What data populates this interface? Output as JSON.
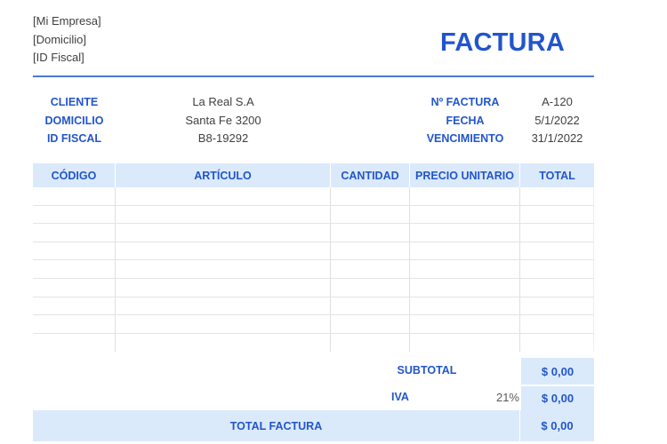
{
  "company": {
    "name": "[Mi Empresa]",
    "address": "[Domicilio]",
    "tax_id": "[ID Fiscal]"
  },
  "title": "FACTURA",
  "client": {
    "labels": {
      "client": "CLIENTE",
      "address": "DOMICILIO",
      "tax_id": "ID FISCAL"
    },
    "values": {
      "client": "La Real S.A",
      "address": "Santa Fe 3200",
      "tax_id": "B8-19292"
    }
  },
  "invoice": {
    "labels": {
      "number": "Nº FACTURA",
      "date": "FECHA",
      "due": "VENCIMIENTO"
    },
    "values": {
      "number": "A-120",
      "date": "5/1/2022",
      "due": "31/1/2022"
    }
  },
  "table": {
    "columns": [
      "CÓDIGO",
      "ARTÍCULO",
      "CANTIDAD",
      "PRECIO UNITARIO",
      "TOTAL"
    ],
    "rows": [
      [
        "",
        "",
        "",
        "",
        ""
      ],
      [
        "",
        "",
        "",
        "",
        ""
      ],
      [
        "",
        "",
        "",
        "",
        ""
      ],
      [
        "",
        "",
        "",
        "",
        ""
      ],
      [
        "",
        "",
        "",
        "",
        ""
      ],
      [
        "",
        "",
        "",
        "",
        ""
      ],
      [
        "",
        "",
        "",
        "",
        ""
      ],
      [
        "",
        "",
        "",
        "",
        ""
      ],
      [
        "",
        "",
        "",
        "",
        ""
      ]
    ]
  },
  "summary": {
    "subtotal_label": "SUBTOTAL",
    "subtotal_value": "$ 0,00",
    "iva_label": "IVA",
    "iva_rate": "21%",
    "iva_value": "$ 0,00",
    "total_label": "TOTAL FACTURA",
    "total_value": "$ 0,00"
  },
  "colors": {
    "accent": "#2255cc",
    "rule": "#4a78d8",
    "header_fill": "#dbeafb",
    "text": "#404040"
  }
}
